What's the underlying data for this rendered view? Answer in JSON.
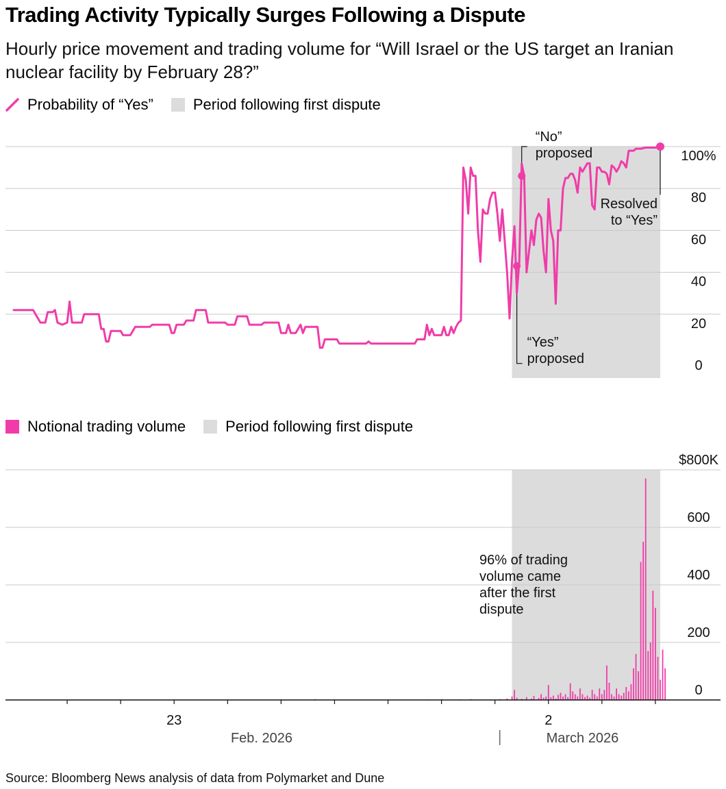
{
  "title": "Trading Activity Typically Surges Following a Dispute",
  "subtitle": "Hourly price movement and trading volume for “Will Israel or the US target an Iranian nuclear facility by February 28?”",
  "legend_top": {
    "line_label": "Probability of “Yes”",
    "shade_label": "Period following first dispute"
  },
  "legend_bottom": {
    "bar_label": "Notional trading volume",
    "shade_label": "Period following first dispute"
  },
  "source": "Source: Bloomberg News analysis of data from Polymarket and Dune",
  "colors": {
    "series": "#f03ca8",
    "shade": "#dcdcdc",
    "grid": "#c8c8c8"
  },
  "chart_data": [
    {
      "type": "line",
      "title": "",
      "xlabel": "",
      "ylabel": "",
      "x_unit": "hours from start",
      "ylim": [
        0,
        100
      ],
      "yticks": [
        "0",
        "20",
        "40",
        "60",
        "80",
        "100%"
      ],
      "shaded_period": {
        "from": 205,
        "to": 266
      },
      "annotations": [
        {
          "text": [
            "“No”",
            "proposed"
          ]
        },
        {
          "text": [
            "“Yes”",
            "proposed"
          ]
        },
        {
          "text": [
            "Resolved",
            "to “Yes”"
          ]
        }
      ],
      "series": [
        {
          "name": "Probability of “Yes”",
          "points": [
            [
              0,
              22
            ],
            [
              8,
              22
            ],
            [
              11,
              16
            ],
            [
              13,
              16
            ],
            [
              14,
              21
            ],
            [
              16,
              21
            ],
            [
              17,
              22
            ],
            [
              18,
              16
            ],
            [
              20,
              15
            ],
            [
              22,
              16
            ],
            [
              23,
              26
            ],
            [
              24,
              16
            ],
            [
              28,
              16
            ],
            [
              29,
              20
            ],
            [
              35,
              20
            ],
            [
              36,
              13
            ],
            [
              37,
              13
            ],
            [
              38,
              7
            ],
            [
              39,
              7
            ],
            [
              40,
              12
            ],
            [
              44,
              12
            ],
            [
              45,
              10
            ],
            [
              48,
              10
            ],
            [
              50,
              14
            ],
            [
              56,
              14
            ],
            [
              57,
              15
            ],
            [
              64,
              15
            ],
            [
              65,
              11
            ],
            [
              66,
              11
            ],
            [
              67,
              15
            ],
            [
              70,
              15
            ],
            [
              71,
              17
            ],
            [
              74,
              17
            ],
            [
              75,
              22
            ],
            [
              79,
              22
            ],
            [
              80,
              16
            ],
            [
              87,
              16
            ],
            [
              88,
              15
            ],
            [
              91,
              15
            ],
            [
              92,
              19
            ],
            [
              96,
              19
            ],
            [
              97,
              15
            ],
            [
              102,
              15
            ],
            [
              103,
              16
            ],
            [
              109,
              16
            ],
            [
              110,
              11
            ],
            [
              112,
              11
            ],
            [
              113,
              15
            ],
            [
              114,
              11
            ],
            [
              116,
              11
            ],
            [
              118,
              15
            ],
            [
              119,
              11
            ],
            [
              120,
              14
            ],
            [
              125,
              14
            ],
            [
              126,
              4
            ],
            [
              127,
              4
            ],
            [
              128,
              8
            ],
            [
              133,
              8
            ],
            [
              134,
              6
            ],
            [
              145,
              6
            ],
            [
              146,
              7
            ],
            [
              147,
              6
            ],
            [
              165,
              6
            ],
            [
              166,
              8
            ],
            [
              169,
              8
            ],
            [
              170,
              15
            ],
            [
              171,
              10
            ],
            [
              172,
              13
            ],
            [
              173,
              10
            ],
            [
              176,
              10
            ],
            [
              177,
              14
            ],
            [
              178,
              10
            ],
            [
              179,
              10
            ],
            [
              180,
              14
            ],
            [
              181,
              11
            ],
            [
              182,
              14
            ],
            [
              183,
              16
            ],
            [
              184,
              17
            ],
            [
              185,
              90
            ],
            [
              186,
              84
            ],
            [
              187,
              68
            ],
            [
              188,
              90
            ],
            [
              189,
              86
            ],
            [
              190,
              86
            ],
            [
              191,
              60
            ],
            [
              192,
              45
            ],
            [
              193,
              70
            ],
            [
              194,
              68
            ],
            [
              195,
              68
            ],
            [
              196,
              75
            ],
            [
              197,
              78
            ],
            [
              198,
              78
            ],
            [
              199,
              68
            ],
            [
              200,
              55
            ],
            [
              201,
              70
            ],
            [
              202,
              55
            ],
            [
              203,
              40
            ],
            [
              204,
              18
            ],
            [
              205,
              45
            ],
            [
              206,
              62
            ],
            [
              207,
              30
            ],
            [
              208,
              45
            ],
            [
              209,
              92
            ],
            [
              210,
              86
            ],
            [
              211,
              40
            ],
            [
              212,
              50
            ],
            [
              213,
              60
            ],
            [
              214,
              53
            ],
            [
              215,
              65
            ],
            [
              216,
              68
            ],
            [
              217,
              66
            ],
            [
              218,
              50
            ],
            [
              219,
              40
            ],
            [
              220,
              75
            ],
            [
              221,
              60
            ],
            [
              222,
              55
            ],
            [
              223,
              25
            ],
            [
              224,
              60
            ],
            [
              225,
              60
            ],
            [
              226,
              80
            ],
            [
              227,
              85
            ],
            [
              228,
              85
            ],
            [
              229,
              87
            ],
            [
              230,
              87
            ],
            [
              231,
              84
            ],
            [
              232,
              78
            ],
            [
              233,
              90
            ],
            [
              234,
              88
            ],
            [
              235,
              90
            ],
            [
              236,
              92
            ],
            [
              237,
              92
            ],
            [
              238,
              72
            ],
            [
              239,
              70
            ],
            [
              240,
              90
            ],
            [
              241,
              90
            ],
            [
              242,
              88
            ],
            [
              243,
              88
            ],
            [
              244,
              87
            ],
            [
              245,
              82
            ],
            [
              246,
              91
            ],
            [
              247,
              90
            ],
            [
              248,
              88
            ],
            [
              249,
              90
            ],
            [
              250,
              93
            ],
            [
              251,
              92
            ],
            [
              252,
              90
            ],
            [
              253,
              98
            ],
            [
              255,
              98
            ],
            [
              256,
              99
            ],
            [
              258,
              99
            ],
            [
              260,
              99.5
            ],
            [
              262,
              99.5
            ],
            [
              264,
              99.5
            ],
            [
              266,
              100
            ]
          ]
        }
      ]
    },
    {
      "type": "bar",
      "title": "",
      "xlabel": "",
      "ylabel": "",
      "x_unit": "hours from start",
      "ylim": [
        0,
        800000
      ],
      "yticks": [
        "0",
        "200",
        "400",
        "600",
        "$800K"
      ],
      "shaded_period": {
        "from": 205,
        "to": 266
      },
      "annotations": [
        {
          "text": [
            "96% of trading",
            "volume came",
            "after the first",
            "dispute"
          ]
        }
      ],
      "xticks": [
        {
          "x": 22,
          "label": ""
        },
        {
          "x": 44,
          "label": ""
        },
        {
          "x": 66,
          "label": "23"
        },
        {
          "x": 88,
          "label": ""
        },
        {
          "x": 110,
          "label": ""
        },
        {
          "x": 132,
          "label": ""
        },
        {
          "x": 154,
          "label": ""
        },
        {
          "x": 176,
          "label": ""
        },
        {
          "x": 198,
          "label": ""
        },
        {
          "x": 220,
          "label": "2"
        },
        {
          "x": 242,
          "label": ""
        },
        {
          "x": 264,
          "label": ""
        }
      ],
      "month_labels": [
        {
          "x": 102,
          "label": "Feb. 2026"
        },
        {
          "x": 234,
          "label": "March 2026"
        }
      ],
      "month_divider_x": 200,
      "series": [
        {
          "name": "Notional trading volume",
          "points": [
            [
              110,
              2000
            ],
            [
              124,
              3000
            ],
            [
              170,
              2000
            ],
            [
              176,
              2000
            ],
            [
              184,
              2000
            ],
            [
              188,
              3000
            ],
            [
              196,
              2000
            ],
            [
              200,
              3000
            ],
            [
              203,
              5000
            ],
            [
              205,
              12000
            ],
            [
              206,
              35000
            ],
            [
              207,
              8000
            ],
            [
              209,
              4000
            ],
            [
              211,
              10000
            ],
            [
              213,
              5000
            ],
            [
              214,
              14000
            ],
            [
              216,
              7000
            ],
            [
              217,
              20000
            ],
            [
              218,
              8000
            ],
            [
              219,
              12000
            ],
            [
              220,
              52000
            ],
            [
              221,
              10000
            ],
            [
              222,
              15000
            ],
            [
              223,
              5000
            ],
            [
              224,
              18000
            ],
            [
              225,
              25000
            ],
            [
              226,
              12000
            ],
            [
              227,
              20000
            ],
            [
              228,
              10000
            ],
            [
              229,
              58000
            ],
            [
              230,
              30000
            ],
            [
              231,
              20000
            ],
            [
              232,
              12000
            ],
            [
              233,
              40000
            ],
            [
              234,
              20000
            ],
            [
              235,
              10000
            ],
            [
              236,
              15000
            ],
            [
              237,
              8000
            ],
            [
              238,
              35000
            ],
            [
              239,
              20000
            ],
            [
              240,
              12000
            ],
            [
              241,
              40000
            ],
            [
              242,
              20000
            ],
            [
              243,
              35000
            ],
            [
              244,
              120000
            ],
            [
              245,
              60000
            ],
            [
              246,
              20000
            ],
            [
              247,
              12000
            ],
            [
              248,
              40000
            ],
            [
              249,
              20000
            ],
            [
              250,
              15000
            ],
            [
              251,
              25000
            ],
            [
              252,
              45000
            ],
            [
              253,
              30000
            ],
            [
              254,
              55000
            ],
            [
              255,
              110000
            ],
            [
              256,
              160000
            ],
            [
              257,
              100000
            ],
            [
              258,
              480000
            ],
            [
              259,
              550000
            ],
            [
              260,
              770000
            ],
            [
              261,
              170000
            ],
            [
              262,
              200000
            ],
            [
              263,
              380000
            ],
            [
              264,
              320000
            ],
            [
              265,
              150000
            ],
            [
              266,
              70000
            ],
            [
              267,
              175000
            ],
            [
              268,
              110000
            ]
          ]
        }
      ]
    }
  ]
}
